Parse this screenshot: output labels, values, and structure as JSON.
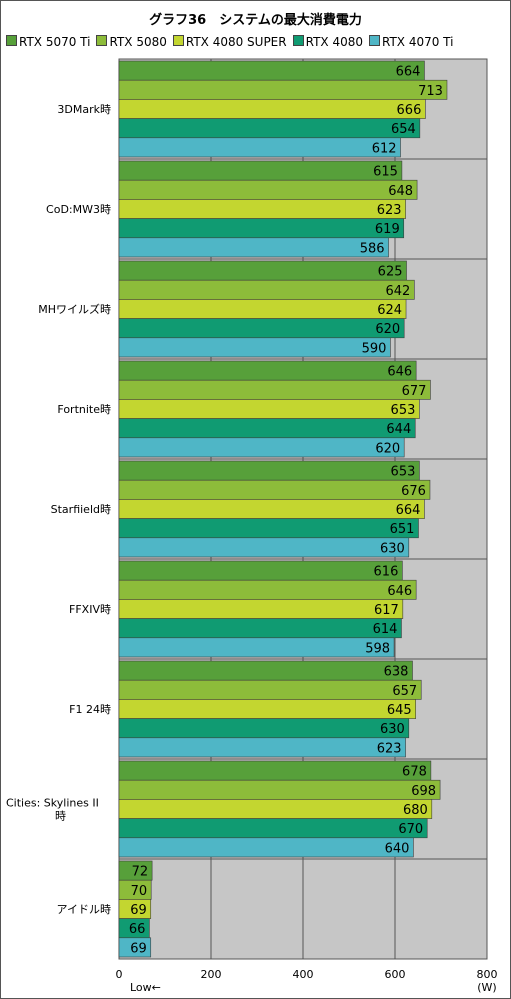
{
  "chart_data": {
    "type": "bar",
    "orientation": "horizontal",
    "title": "グラフ36　システムの最大消費電力",
    "unit_label": "(W)",
    "direction_label": "Low←",
    "xlim": [
      0,
      800
    ],
    "x_ticks": [
      0,
      200,
      400,
      600,
      800
    ],
    "grid": true,
    "legend_position": "top",
    "categories": [
      [
        "3DMark時"
      ],
      [
        "CoD:MW3時"
      ],
      [
        "MHワイルズ時"
      ],
      [
        "Fortnite時"
      ],
      [
        "Starfiield時"
      ],
      [
        "FFXIV時"
      ],
      [
        "F1 24時"
      ],
      [
        "Cities: Skylines II",
        "時"
      ],
      [
        "アイドル時"
      ]
    ],
    "series": [
      {
        "name": "RTX 5070 Ti",
        "color": "#57a03a",
        "values": [
          664,
          615,
          625,
          646,
          653,
          616,
          638,
          678,
          72
        ]
      },
      {
        "name": "RTX 5080",
        "color": "#8dbc3a",
        "values": [
          713,
          648,
          642,
          677,
          676,
          646,
          657,
          698,
          70
        ]
      },
      {
        "name": "RTX 4080 SUPER",
        "color": "#c3d630",
        "values": [
          666,
          623,
          624,
          653,
          664,
          617,
          645,
          680,
          69
        ]
      },
      {
        "name": "RTX 4080",
        "color": "#109b72",
        "values": [
          654,
          619,
          620,
          644,
          651,
          614,
          630,
          670,
          66
        ]
      },
      {
        "name": "RTX 4070 Ti",
        "color": "#4fb6c6",
        "values": [
          612,
          586,
          590,
          620,
          630,
          598,
          623,
          640,
          69
        ]
      }
    ]
  }
}
